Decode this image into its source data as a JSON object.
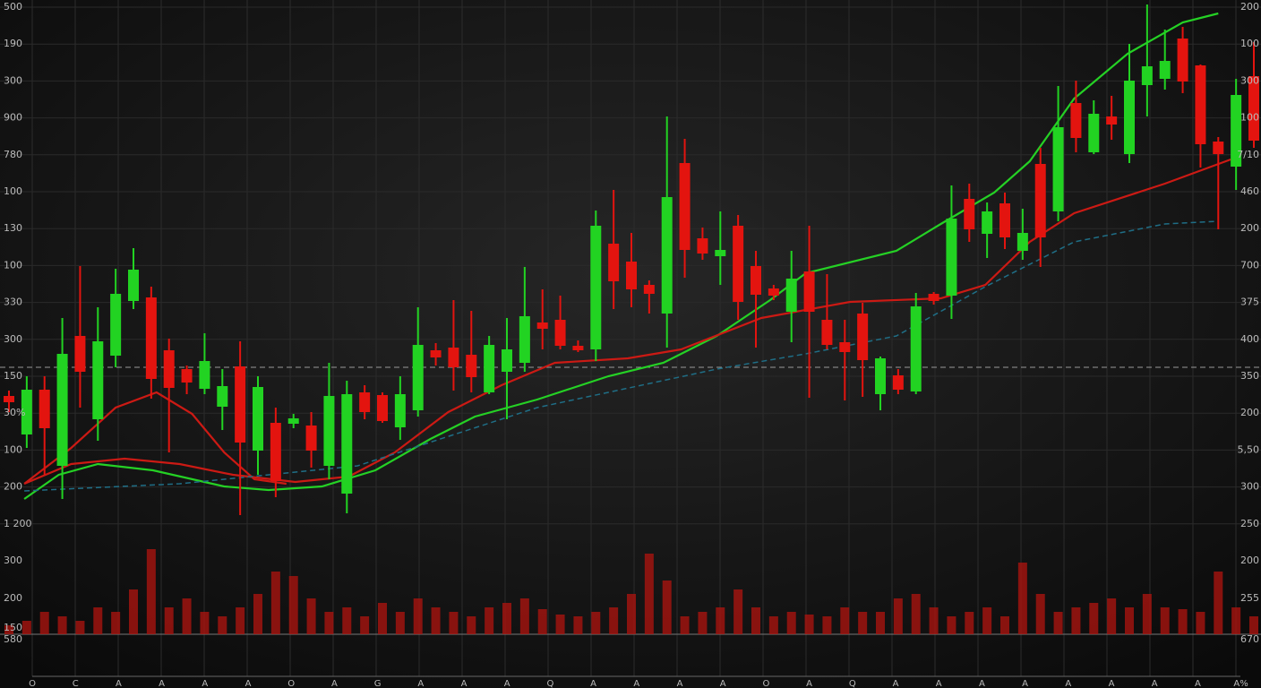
{
  "chart_data": {
    "type": "candlestick",
    "ylim": [
      0,
      600
    ],
    "xlim": [
      0,
      70
    ],
    "up_color": "#22d322",
    "down_color": "#e3140f",
    "open": [
      158,
      115,
      165,
      80,
      225,
      132,
      203,
      264,
      268,
      209,
      188,
      166,
      146,
      191,
      97,
      128,
      127,
      125,
      80,
      49,
      162,
      159,
      123,
      142,
      209,
      212,
      204,
      162,
      185,
      195,
      240,
      243,
      214,
      210,
      328,
      308,
      282,
      250,
      418,
      334,
      314,
      348,
      303,
      278,
      252,
      297,
      243,
      218,
      250,
      160,
      181,
      163,
      272,
      270,
      378,
      339,
      373,
      320,
      417,
      364,
      485,
      430,
      470,
      428,
      505,
      512,
      557,
      527,
      442,
      414,
      515
    ],
    "high": [
      164,
      180,
      180,
      245,
      303,
      257,
      300,
      323,
      280,
      222,
      192,
      228,
      188,
      219,
      180,
      145,
      138,
      140,
      195,
      175,
      170,
      162,
      180,
      257,
      217,
      265,
      253,
      225,
      245,
      302,
      277,
      270,
      220,
      365,
      388,
      340,
      287,
      470,
      445,
      346,
      364,
      360,
      320,
      282,
      320,
      348,
      294,
      243,
      262,
      202,
      188,
      273,
      274,
      393,
      395,
      374,
      385,
      367,
      435,
      504,
      510,
      488,
      493,
      551,
      595,
      567,
      570,
      528,
      447,
      512,
      553
    ],
    "low": [
      140,
      100,
      70,
      43,
      145,
      108,
      190,
      255,
      155,
      95,
      160,
      160,
      120,
      25,
      70,
      45,
      122,
      78,
      65,
      27,
      132,
      128,
      109,
      135,
      192,
      164,
      162,
      160,
      132,
      185,
      210,
      210,
      207,
      197,
      255,
      257,
      250,
      212,
      290,
      310,
      282,
      243,
      212,
      265,
      218,
      156,
      210,
      153,
      157,
      142,
      160,
      160,
      260,
      244,
      330,
      312,
      322,
      310,
      302,
      353,
      430,
      428,
      444,
      418,
      470,
      500,
      496,
      413,
      344,
      388,
      435
    ],
    "close": [
      151,
      165,
      122,
      205,
      185,
      219,
      272,
      299,
      177,
      167,
      173,
      197,
      169,
      106,
      168,
      63,
      133,
      97,
      158,
      160,
      140,
      130,
      160,
      215,
      201,
      190,
      179,
      215,
      210,
      247,
      233,
      214,
      209,
      348,
      286,
      277,
      272,
      380,
      321,
      317,
      321,
      263,
      271,
      270,
      289,
      252,
      215,
      207,
      198,
      200,
      165,
      258,
      264,
      356,
      344,
      364,
      335,
      340,
      335,
      458,
      446,
      473,
      461,
      510,
      526,
      532,
      509,
      439,
      428,
      494,
      443
    ],
    "lines": [
      {
        "color": "#25d125",
        "dashed": false,
        "x": [
          0.86,
          2.8,
          5.0,
          8.1,
          12.1,
          14.6,
          17.6,
          20.6,
          23.7,
          26.2,
          29.7,
          33.7,
          36.8,
          39.8,
          42.8,
          44.8,
          49.9,
          52.4,
          55.4,
          57.4,
          59.9,
          62.9,
          66.0,
          68.0
        ],
        "values": [
          43,
          70,
          82,
          75,
          57,
          53,
          57,
          75,
          110,
          135,
          154,
          180,
          195,
          225,
          265,
          295,
          320,
          350,
          385,
          420,
          490,
          540,
          575,
          585
        ]
      },
      {
        "color": "#cc1a14",
        "dashed": false,
        "x": [
          0.86,
          3.5,
          6.5,
          9.6,
          12.6,
          16.1,
          19.1,
          21.7,
          24.7,
          27.7,
          30.7,
          34.8,
          37.8,
          42.3,
          47.3,
          52.4,
          54.9,
          57.4,
          59.9,
          65.0,
          68.7
        ],
        "values": [
          60,
          82,
          88,
          82,
          70,
          62,
          68,
          95,
          140,
          170,
          195,
          200,
          210,
          245,
          263,
          267,
          282,
          330,
          362,
          395,
          422
        ]
      },
      {
        "color": "#cc1a14",
        "dashed": false,
        "x": [
          0.86,
          3.5,
          6.0,
          8.3,
          10.3,
          12.1,
          13.8,
          15.6
        ],
        "values": [
          60,
          100,
          145,
          162,
          138,
          95,
          65,
          60
        ]
      },
      {
        "color": "#1f6e86",
        "dashed": true,
        "x": [
          0.86,
          9.6,
          19.6,
          29.7,
          39.8,
          44.8,
          49.9,
          54.9,
          59.9,
          65.0,
          68.0
        ],
        "values": [
          52,
          60,
          80,
          145,
          188,
          205,
          225,
          280,
          330,
          350,
          353
        ]
      }
    ],
    "reference_line": 190,
    "volume": {
      "color": "#a8140f",
      "ylim": [
        0,
        100
      ],
      "values": [
        10,
        15,
        25,
        20,
        15,
        30,
        25,
        50,
        95,
        30,
        40,
        25,
        20,
        30,
        45,
        70,
        65,
        40,
        25,
        30,
        20,
        35,
        25,
        40,
        30,
        25,
        20,
        30,
        35,
        40,
        28,
        22,
        20,
        25,
        30,
        45,
        90,
        60,
        20,
        25,
        30,
        50,
        30,
        20,
        25,
        22,
        20,
        30,
        25,
        25,
        40,
        45,
        30,
        20,
        25,
        30,
        20,
        80,
        45,
        25,
        30,
        35,
        40,
        30,
        45,
        30,
        28,
        25,
        70,
        30,
        20
      ]
    },
    "left_labels": [
      "500",
      "190",
      "300",
      "900",
      "780",
      "100",
      "130",
      "100",
      "330",
      "300",
      "150",
      "30%",
      "100",
      "200",
      "1 200"
    ],
    "left_volume_labels": [
      "300",
      "200",
      "150",
      "580"
    ],
    "right_labels": [
      "200",
      "100",
      "300",
      "100",
      "7/10",
      "460",
      "200",
      "700",
      "375",
      "400",
      "350",
      "200",
      "5,50",
      "300",
      "250"
    ],
    "right_volume_labels": [
      "200",
      "255",
      "670"
    ],
    "bottom_labels": [
      "O",
      "C",
      "A",
      "A",
      "A",
      "A",
      "O",
      "A",
      "G",
      "A",
      "A",
      "A",
      "Q",
      "A",
      "A",
      "A",
      "A",
      "O",
      "A",
      "Q",
      "A",
      "A",
      "A",
      "A",
      "A",
      "A",
      "A",
      "A",
      "A%"
    ]
  }
}
